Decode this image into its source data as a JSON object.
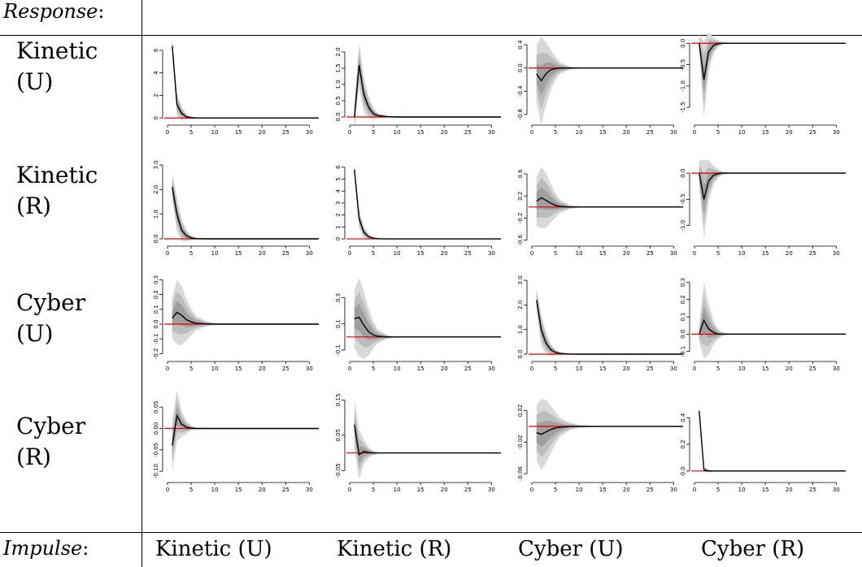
{
  "header": {
    "response_label": "Response",
    "impulse_label": "Impulse",
    "colon": ":"
  },
  "row_labels": [
    {
      "line1": "Kinetic",
      "line2": "(U)"
    },
    {
      "line1": "Kinetic",
      "line2": "(R)"
    },
    {
      "line1": "Cyber",
      "line2": "(U)"
    },
    {
      "line1": "Cyber",
      "line2": "(R)"
    }
  ],
  "col_labels": [
    "Kinetic (U)",
    "Kinetic (R)",
    "Cyber (U)",
    "Cyber (R)"
  ],
  "colors": {
    "line": "#000000",
    "zero_line": "#e00000",
    "band_outer": "#d9d9d9",
    "band_mid": "#bdbdbd",
    "band_inner": "#9f9f9f"
  },
  "chart_data": [
    {
      "type": "line",
      "x": [
        1,
        2,
        3,
        4,
        5,
        6,
        8,
        10,
        15,
        20,
        25,
        30,
        32
      ],
      "values": [
        6.4,
        1.2,
        0.4,
        0.1,
        0.03,
        0.01,
        0,
        0,
        0,
        0,
        0,
        0,
        0
      ],
      "band": [
        0.7,
        1.0,
        0.6,
        0.25,
        0.1,
        0.04,
        0.01,
        0,
        0,
        0,
        0,
        0,
        0
      ],
      "ylim": [
        -0.2,
        7.0
      ],
      "yticks": [
        0,
        2,
        4,
        6
      ],
      "ytick_labels": [
        "0",
        "2",
        "4",
        "6"
      ],
      "xticks": [
        0,
        5,
        10,
        15,
        20,
        25,
        30
      ]
    },
    {
      "type": "line",
      "x": [
        1,
        2,
        3,
        4,
        5,
        6,
        8,
        10,
        15,
        20,
        25,
        30,
        32
      ],
      "values": [
        0,
        1.6,
        0.7,
        0.3,
        0.1,
        0.04,
        0.01,
        0,
        0,
        0,
        0,
        0,
        0
      ],
      "band": [
        0.4,
        0.7,
        0.55,
        0.35,
        0.18,
        0.08,
        0.02,
        0,
        0,
        0,
        0,
        0,
        0
      ],
      "ylim": [
        -0.1,
        2.4
      ],
      "yticks": [
        0,
        0.5,
        1.0,
        1.5,
        2.0
      ],
      "ytick_labels": [
        "0.0",
        "0.5",
        "1.0",
        "1.5",
        "2.0"
      ],
      "xticks": [
        0,
        5,
        10,
        15,
        20,
        25,
        30
      ]
    },
    {
      "type": "line",
      "x": [
        1,
        2,
        3,
        4,
        5,
        6,
        8,
        10,
        15,
        20,
        25,
        30,
        32
      ],
      "values": [
        -0.1,
        -0.22,
        -0.1,
        -0.03,
        -0.01,
        0,
        0,
        0,
        0,
        0,
        0,
        0,
        0
      ],
      "band": [
        0.5,
        0.75,
        0.55,
        0.35,
        0.2,
        0.1,
        0.03,
        0.01,
        0,
        0,
        0,
        0,
        0
      ],
      "ylim": [
        -0.9,
        0.5
      ],
      "yticks": [
        -0.8,
        -0.4,
        0,
        0.4
      ],
      "ytick_labels": [
        "-0.8",
        "-0.4",
        "0.0",
        "0.4"
      ],
      "xticks": [
        0,
        5,
        10,
        15,
        20,
        25,
        30
      ]
    },
    {
      "type": "line",
      "x": [
        1,
        2,
        3,
        4,
        5,
        6,
        8,
        10,
        15,
        20,
        25,
        30,
        32
      ],
      "values": [
        0,
        -0.85,
        -0.2,
        -0.05,
        -0.01,
        0,
        0,
        0,
        0,
        0,
        0,
        0,
        0
      ],
      "band": [
        0.2,
        0.9,
        0.45,
        0.2,
        0.08,
        0.03,
        0.01,
        0,
        0,
        0,
        0,
        0,
        0
      ],
      "ylim": [
        -1.8,
        0.1
      ],
      "yticks": [
        -1.5,
        -1.0,
        -0.5,
        0.0
      ],
      "ytick_labels": [
        "-1.5",
        "-1.0",
        "-0.5",
        "0.0"
      ],
      "xticks": [
        0,
        5,
        10,
        15,
        20,
        25,
        30
      ]
    },
    {
      "type": "line",
      "x": [
        1,
        2,
        3,
        4,
        5,
        6,
        8,
        10,
        15,
        20,
        25,
        30,
        32
      ],
      "values": [
        2.1,
        1.0,
        0.35,
        0.12,
        0.04,
        0.01,
        0,
        0,
        0,
        0,
        0,
        0,
        0
      ],
      "band": [
        0.6,
        0.7,
        0.45,
        0.25,
        0.1,
        0.04,
        0.01,
        0,
        0,
        0,
        0,
        0,
        0
      ],
      "ylim": [
        -0.1,
        3.2
      ],
      "yticks": [
        0,
        1.0,
        2.0,
        3.0
      ],
      "ytick_labels": [
        "0.0",
        "1.0",
        "2.0",
        "3.0"
      ],
      "xticks": [
        0,
        5,
        10,
        15,
        20,
        25,
        30
      ]
    },
    {
      "type": "line",
      "x": [
        1,
        2,
        3,
        4,
        5,
        6,
        8,
        10,
        15,
        20,
        25,
        30,
        32
      ],
      "values": [
        5.8,
        1.7,
        0.55,
        0.18,
        0.06,
        0.02,
        0,
        0,
        0,
        0,
        0,
        0,
        0
      ],
      "band": [
        0.5,
        0.8,
        0.5,
        0.25,
        0.1,
        0.04,
        0.01,
        0,
        0,
        0,
        0,
        0,
        0
      ],
      "ylim": [
        -0.2,
        6.6
      ],
      "yticks": [
        0,
        1,
        2,
        3,
        4,
        5,
        6
      ],
      "ytick_labels": [
        "0",
        "1",
        "2",
        "3",
        "4",
        "5",
        "6"
      ],
      "xticks": [
        0,
        5,
        10,
        15,
        20,
        25,
        30
      ]
    },
    {
      "type": "line",
      "x": [
        1,
        2,
        3,
        4,
        5,
        6,
        8,
        10,
        15,
        20,
        25,
        30,
        32
      ],
      "values": [
        0.1,
        0.17,
        0.12,
        0.07,
        0.03,
        0.01,
        0,
        0,
        0,
        0,
        0,
        0,
        0
      ],
      "band": [
        0.45,
        0.55,
        0.5,
        0.35,
        0.22,
        0.12,
        0.04,
        0.01,
        0,
        0,
        0,
        0,
        0
      ],
      "ylim": [
        -0.62,
        0.85
      ],
      "yticks": [
        -0.6,
        -0.2,
        0.2,
        0.6
      ],
      "ytick_labels": [
        "-0.6",
        "-0.2",
        "0.2",
        "0.6"
      ],
      "xticks": [
        0,
        5,
        10,
        15,
        20,
        25,
        30
      ]
    },
    {
      "type": "line",
      "x": [
        1,
        2,
        3,
        4,
        5,
        6,
        8,
        10,
        15,
        20,
        25,
        30,
        32
      ],
      "values": [
        0,
        -0.5,
        -0.15,
        -0.04,
        -0.01,
        0,
        0,
        0,
        0,
        0,
        0,
        0,
        0
      ],
      "band": [
        0.25,
        0.75,
        0.4,
        0.18,
        0.08,
        0.03,
        0.01,
        0,
        0,
        0,
        0,
        0,
        0
      ],
      "ylim": [
        -1.3,
        0.25
      ],
      "yticks": [
        -1.0,
        -0.5,
        0.0
      ],
      "ytick_labels": [
        "-1.0",
        "-0.5",
        "0.0"
      ],
      "xticks": [
        0,
        5,
        10,
        15,
        20,
        25,
        30
      ]
    },
    {
      "type": "line",
      "x": [
        1,
        2,
        3,
        4,
        5,
        6,
        8,
        10,
        15,
        20,
        25,
        30,
        32
      ],
      "values": [
        0.04,
        0.08,
        0.06,
        0.03,
        0.015,
        0.006,
        0.002,
        0,
        0,
        0,
        0,
        0,
        0
      ],
      "band": [
        0.14,
        0.22,
        0.2,
        0.14,
        0.09,
        0.05,
        0.02,
        0.005,
        0,
        0,
        0,
        0,
        0
      ],
      "ylim": [
        -0.22,
        0.33
      ],
      "yticks": [
        -0.2,
        -0.1,
        0,
        0.1,
        0.2,
        0.3
      ],
      "ytick_labels": [
        "-0.2",
        "-0.1",
        "0.0",
        "0.1",
        "0.2",
        "0.3"
      ],
      "xticks": [
        0,
        5,
        10,
        15,
        20,
        25,
        30
      ]
    },
    {
      "type": "line",
      "x": [
        1,
        2,
        3,
        4,
        5,
        6,
        8,
        10,
        15,
        20,
        25,
        30,
        32
      ],
      "values": [
        0.14,
        0.15,
        0.09,
        0.04,
        0.015,
        0.005,
        0,
        0,
        0,
        0,
        0,
        0,
        0
      ],
      "band": [
        0.22,
        0.3,
        0.26,
        0.18,
        0.1,
        0.05,
        0.015,
        0,
        0,
        0,
        0,
        0,
        0
      ],
      "ylim": [
        -0.15,
        0.47
      ],
      "yticks": [
        -0.1,
        0.1,
        0.3
      ],
      "ytick_labels": [
        "-0.1",
        "0.1",
        "0.3"
      ],
      "xticks": [
        0,
        5,
        10,
        15,
        20,
        25,
        30
      ]
    },
    {
      "type": "line",
      "x": [
        1,
        2,
        3,
        4,
        5,
        6,
        8,
        10,
        15,
        20,
        25,
        30,
        32
      ],
      "values": [
        2.2,
        1.0,
        0.45,
        0.18,
        0.07,
        0.03,
        0.005,
        0,
        0,
        0,
        0,
        0,
        0
      ],
      "band": [
        0.5,
        0.65,
        0.45,
        0.25,
        0.12,
        0.05,
        0.015,
        0,
        0,
        0,
        0,
        0,
        0
      ],
      "ylim": [
        -0.1,
        3.2
      ],
      "yticks": [
        0,
        1.0,
        2.0,
        3.0
      ],
      "ytick_labels": [
        "0.0",
        "1.0",
        "2.0",
        "3.0"
      ],
      "xticks": [
        0,
        5,
        10,
        15,
        20,
        25,
        30
      ]
    },
    {
      "type": "line",
      "x": [
        1,
        2,
        3,
        4,
        5,
        6,
        8,
        10,
        15,
        20,
        25,
        30,
        32
      ],
      "values": [
        0,
        0.08,
        0.03,
        0.01,
        0,
        0,
        0,
        0,
        0,
        0,
        0,
        0,
        0
      ],
      "band": [
        0.05,
        0.22,
        0.15,
        0.07,
        0.03,
        0.01,
        0,
        0,
        0,
        0,
        0,
        0,
        0
      ],
      "ylim": [
        -0.13,
        0.34
      ],
      "yticks": [
        -0.1,
        0,
        0.1,
        0.2,
        0.3
      ],
      "ytick_labels": [
        "-0.1",
        "0.0",
        "0.1",
        "0.2",
        "0.3"
      ],
      "xticks": [
        0,
        5,
        10,
        15,
        20,
        25,
        30
      ]
    },
    {
      "type": "line",
      "x": [
        1,
        2,
        3,
        4,
        5,
        6,
        8,
        10,
        15,
        20,
        25,
        30,
        32
      ],
      "values": [
        -0.04,
        0.03,
        0.01,
        0.003,
        0.001,
        0,
        0,
        0,
        0,
        0,
        0,
        0,
        0
      ],
      "band": [
        0.06,
        0.06,
        0.03,
        0.015,
        0.006,
        0.002,
        0,
        0,
        0,
        0,
        0,
        0,
        0
      ],
      "ylim": [
        -0.115,
        0.075
      ],
      "yticks": [
        -0.1,
        -0.05,
        0,
        0.05
      ],
      "ytick_labels": [
        "-0.10",
        "-0.05",
        "0.00",
        "0.05"
      ],
      "xticks": [
        0,
        5,
        10,
        15,
        20,
        25,
        30
      ]
    },
    {
      "type": "line",
      "x": [
        1,
        2,
        3,
        4,
        5,
        6,
        8,
        10,
        15,
        20,
        25,
        30,
        32
      ],
      "values": [
        0.08,
        -0.005,
        0.004,
        0.001,
        0,
        0,
        0,
        0,
        0,
        0,
        0,
        0,
        0
      ],
      "band": [
        0.07,
        0.07,
        0.035,
        0.015,
        0.006,
        0.002,
        0,
        0,
        0,
        0,
        0,
        0,
        0
      ],
      "ylim": [
        -0.07,
        0.16
      ],
      "yticks": [
        -0.05,
        0.05,
        0.15
      ],
      "ytick_labels": [
        "-0.05",
        "0.05",
        "0.15"
      ],
      "xticks": [
        0,
        5,
        10,
        15,
        20,
        25,
        30
      ]
    },
    {
      "type": "line",
      "x": [
        1,
        2,
        3,
        4,
        5,
        6,
        8,
        10,
        15,
        20,
        25,
        30,
        32
      ],
      "values": [
        -0.008,
        -0.01,
        -0.007,
        -0.004,
        -0.002,
        -0.001,
        0,
        0,
        0,
        0,
        0,
        0,
        0
      ],
      "band": [
        0.035,
        0.045,
        0.04,
        0.03,
        0.02,
        0.012,
        0.005,
        0.002,
        0,
        0,
        0,
        0,
        0
      ],
      "ylim": [
        -0.065,
        0.038
      ],
      "yticks": [
        -0.06,
        -0.02,
        0.02
      ],
      "ytick_labels": [
        "-0.06",
        "-0.02",
        "0.02"
      ],
      "xticks": [
        0,
        5,
        10,
        15,
        20,
        25,
        30
      ]
    },
    {
      "type": "line",
      "x": [
        1,
        2,
        3,
        4,
        5,
        6,
        8,
        10,
        15,
        20,
        25,
        30,
        32
      ],
      "values": [
        0.45,
        0.01,
        0,
        0,
        0,
        0,
        0,
        0,
        0,
        0,
        0,
        0,
        0
      ],
      "band": [
        0.05,
        0.02,
        0.01,
        0.005,
        0,
        0,
        0,
        0,
        0,
        0,
        0,
        0,
        0
      ],
      "ylim": [
        -0.05,
        0.56
      ],
      "yticks": [
        0,
        0.2,
        0.4
      ],
      "ytick_labels": [
        "0.0",
        "0.2",
        "0.4"
      ],
      "xticks": [
        0,
        5,
        10,
        15,
        20,
        25,
        30
      ]
    }
  ]
}
